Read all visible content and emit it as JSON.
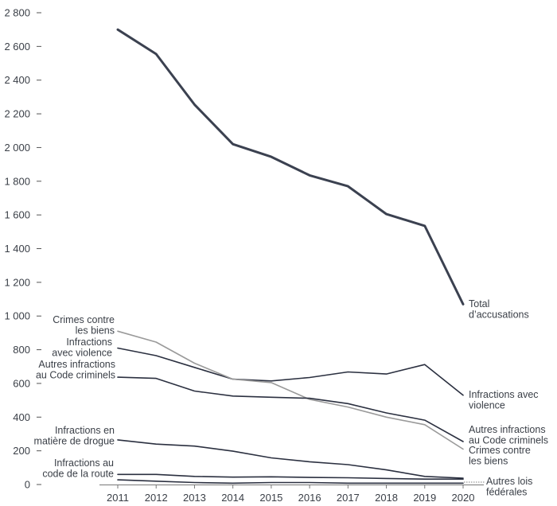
{
  "chart_data": {
    "type": "line",
    "title": "",
    "xlabel": "",
    "ylabel": "",
    "ylim": [
      0,
      2800
    ],
    "yticks": [
      0,
      200,
      400,
      600,
      800,
      1000,
      1200,
      1400,
      1600,
      1800,
      2000,
      2200,
      2400,
      2600,
      2800
    ],
    "ytick_labels": [
      "0",
      "200",
      "400",
      "600",
      "800",
      "1 000",
      "1 200",
      "1 400",
      "1 600",
      "1 800",
      "2 000",
      "2 200",
      "2 400",
      "2 600",
      "2 800"
    ],
    "categories": [
      "2011",
      "2012",
      "2013",
      "2014",
      "2015",
      "2016",
      "2017",
      "2018",
      "2019",
      "2020"
    ],
    "series": [
      {
        "name": "Total d'accusations",
        "label_lines": [
          "Total",
          "d’accusations"
        ],
        "label_side": "right",
        "color": "#3b4150",
        "width": 3,
        "values": [
          2700,
          2555,
          2255,
          2020,
          1945,
          1835,
          1770,
          1605,
          1535,
          1070
        ]
      },
      {
        "name": "Infractions avec violence",
        "left_label_lines": [
          "Infractions",
          "avec violence"
        ],
        "right_label_lines": [
          "Infractions avec",
          "violence"
        ],
        "color": "#2b3040",
        "width": 1.6,
        "values": [
          810,
          765,
          695,
          625,
          615,
          635,
          668,
          656,
          712,
          530
        ]
      },
      {
        "name": "Crimes contre les biens",
        "left_label_lines": [
          "Crimes contre",
          "les biens"
        ],
        "right_label_lines": [
          "Crimes contre",
          "les biens"
        ],
        "color": "#9a9a9a",
        "width": 1.6,
        "values": [
          910,
          845,
          720,
          625,
          605,
          505,
          460,
          400,
          355,
          210
        ]
      },
      {
        "name": "Autres infractions au Code criminels",
        "left_label_lines": [
          "Autres infractions",
          "au Code criminels"
        ],
        "right_label_lines": [
          "Autres infractions",
          "au Code criminels"
        ],
        "color": "#2b3040",
        "width": 1.6,
        "values": [
          637,
          630,
          555,
          525,
          518,
          512,
          480,
          425,
          382,
          255
        ]
      },
      {
        "name": "Infractions en matière de drogue",
        "left_label_lines": [
          "Infractions en",
          "matière de drogue"
        ],
        "color": "#2b3040",
        "width": 1.6,
        "values": [
          265,
          240,
          228,
          198,
          158,
          135,
          118,
          87,
          48,
          38
        ]
      },
      {
        "name": "Infractions au code de la route",
        "left_label_lines": [
          "Infractions au",
          "code de la route"
        ],
        "color": "#2b3040",
        "width": 1.6,
        "values": [
          60,
          60,
          48,
          44,
          46,
          42,
          40,
          36,
          32,
          32
        ]
      },
      {
        "name": "Autres lois fédérales",
        "right_label_lines": [
          "Autres lois",
          "fédérales"
        ],
        "color": "#2b3040",
        "width": 1.6,
        "values": [
          28,
          20,
          12,
          8,
          12,
          12,
          8,
          8,
          8,
          8
        ]
      }
    ]
  }
}
